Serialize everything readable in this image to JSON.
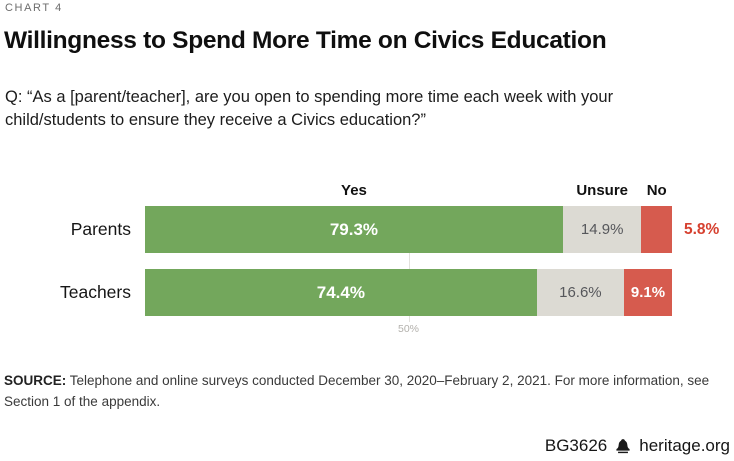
{
  "chart_label": "CHART 4",
  "title": "Willingness to Spend More Time on Civics Education",
  "question": "Q: “As a [parent/teacher], are you open to spending more time each week with your child/students to ensure they receive a Civics education?”",
  "chart_data": {
    "type": "bar",
    "stacked": true,
    "orientation": "horizontal",
    "title": "Willingness to Spend More Time on Civics Education",
    "categories": [
      "Parents",
      "Teachers"
    ],
    "series": [
      {
        "name": "Yes",
        "values": [
          79.3,
          74.4
        ],
        "color": "#73a75c",
        "label_color": "#ffffff"
      },
      {
        "name": "Unsure",
        "values": [
          14.9,
          16.6
        ],
        "color": "#dcdad3",
        "label_color": "#56575b"
      },
      {
        "name": "No",
        "values": [
          5.8,
          9.1
        ],
        "color": "#d65b4e",
        "label_color": "#ffffff"
      }
    ],
    "value_suffix": "%",
    "outside_labels": [
      {
        "category": "Parents",
        "series": "No",
        "color": "#d6402f"
      }
    ],
    "gridline": {
      "value": 50,
      "label": "50%"
    },
    "xlim": [
      0,
      100
    ],
    "xlabel": "",
    "ylabel": "",
    "legend_position": "column headers above first bar"
  },
  "source": {
    "prefix": "SOURCE:",
    "text": "Telephone and online surveys conducted December 30, 2020–February 2, 2021. For more information, see Section 1 of the appendix."
  },
  "footer": {
    "id": "BG3626",
    "site": "heritage.org",
    "icon": "liberty-bell-icon"
  }
}
